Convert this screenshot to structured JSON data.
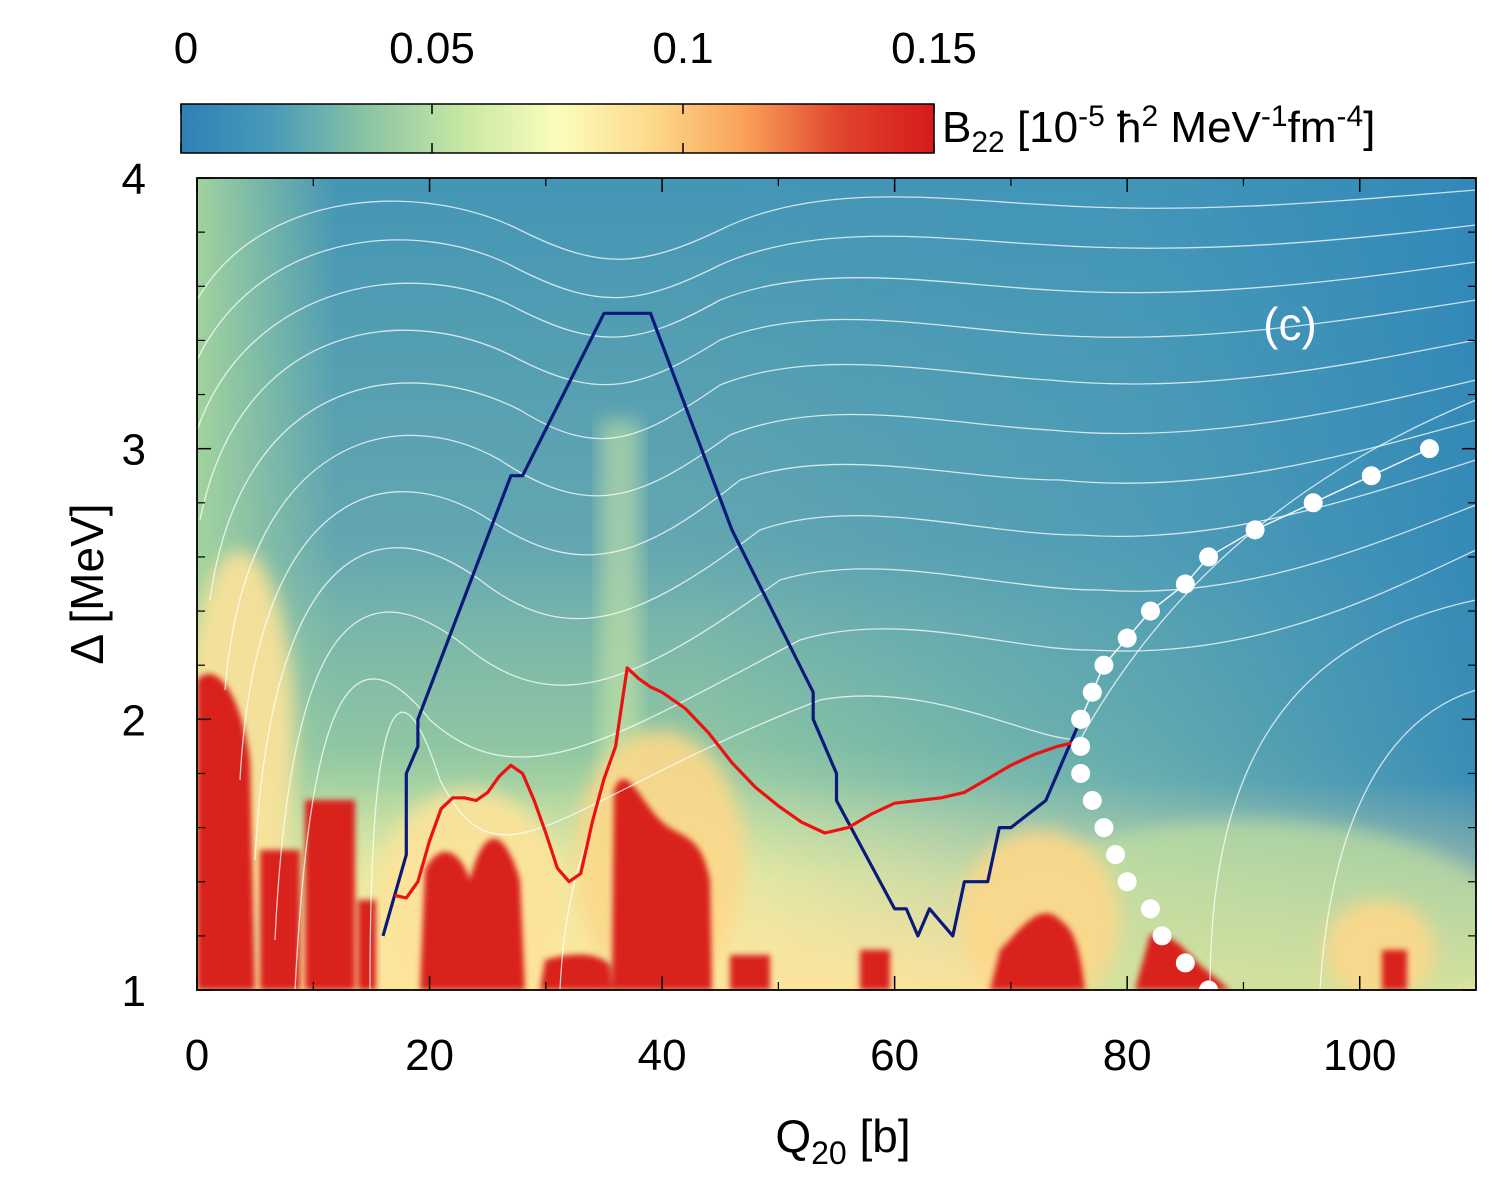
{
  "chart_data": {
    "type": "heatmap",
    "panel_label": "(c)",
    "xlabel_main": "Q",
    "xlabel_sub": "20",
    "xlabel_unit": " [b]",
    "ylabel": "Δ [MeV]",
    "xlim": [
      0,
      110
    ],
    "ylim": [
      1,
      4
    ],
    "x_ticks": [
      0,
      20,
      40,
      60,
      80,
      100
    ],
    "y_ticks": [
      1,
      2,
      3,
      4
    ],
    "x_tick_labels": [
      "0",
      "20",
      "40",
      "60",
      "80",
      "100"
    ],
    "y_tick_labels": [
      "1",
      "2",
      "3",
      "4"
    ],
    "colorbar": {
      "label_main": "B",
      "label_sub": "22",
      "label_open": " [10",
      "label_exp1": "-5",
      "label_hbar": " ħ",
      "label_exp2": "2",
      "label_mev": " MeV",
      "label_exp3": "-1",
      "label_fm": "fm",
      "label_exp4": "-4",
      "label_close": "]",
      "range": [
        0,
        0.15
      ],
      "ticks": [
        0,
        0.05,
        0.1,
        0.15
      ],
      "tick_labels": [
        "0",
        "0.05",
        "0.1",
        "0.15"
      ],
      "colors": [
        "#2f7fb8",
        "#4a9cb8",
        "#8cc5a3",
        "#c7e8a4",
        "#fbfdbd",
        "#fed98b",
        "#f9a059",
        "#e0452d",
        "#d7191c"
      ]
    },
    "series": [
      {
        "name": "blue path",
        "color": "#0b1a7a",
        "x": [
          16,
          18,
          18,
          19,
          19,
          27,
          28,
          35,
          39,
          46,
          53,
          53,
          55,
          55,
          60,
          61,
          62,
          63,
          65,
          66,
          68,
          69,
          70,
          73,
          76
        ],
        "y": [
          1.2,
          1.5,
          1.8,
          1.9,
          2.0,
          2.9,
          2.9,
          3.5,
          3.5,
          2.7,
          2.1,
          2.0,
          1.8,
          1.7,
          1.3,
          1.3,
          1.2,
          1.3,
          1.2,
          1.4,
          1.4,
          1.6,
          1.6,
          1.7,
          2.0
        ]
      },
      {
        "name": "red path",
        "color": "#ee1111",
        "x": [
          17,
          18,
          19,
          20,
          21,
          22,
          23,
          24,
          25,
          26,
          27,
          28,
          29,
          30,
          31,
          32,
          33,
          34,
          35,
          36,
          37,
          38,
          39,
          40,
          42,
          44,
          46,
          48,
          50,
          52,
          54,
          56,
          58,
          60,
          62,
          64,
          66,
          68,
          70,
          72,
          74,
          75,
          76
        ],
        "y": [
          1.35,
          1.34,
          1.4,
          1.55,
          1.67,
          1.71,
          1.71,
          1.7,
          1.73,
          1.79,
          1.83,
          1.8,
          1.7,
          1.58,
          1.45,
          1.4,
          1.43,
          1.62,
          1.78,
          1.9,
          2.19,
          2.15,
          2.12,
          2.1,
          2.04,
          1.95,
          1.84,
          1.75,
          1.68,
          1.62,
          1.58,
          1.6,
          1.65,
          1.69,
          1.7,
          1.71,
          1.73,
          1.78,
          1.83,
          1.87,
          1.9,
          1.91,
          1.92
        ]
      },
      {
        "name": "white dots",
        "color": "#ffffff",
        "x": [
          76,
          76,
          76,
          77,
          78,
          79,
          80,
          82,
          83,
          85,
          87,
          87,
          85,
          82,
          80,
          78,
          77,
          76
        ],
        "y": [
          2.0,
          1.9,
          1.8,
          1.7,
          1.6,
          1.5,
          1.4,
          1.3,
          1.2,
          1.1,
          1.0,
          2.6,
          2.5,
          2.4,
          2.3,
          2.2,
          2.1,
          2.0
        ]
      },
      {
        "name": "white dots upper",
        "color": "#ffffff",
        "x": [
          91,
          96,
          101,
          106
        ],
        "y": [
          2.7,
          2.8,
          2.9,
          3.0
        ]
      }
    ]
  }
}
